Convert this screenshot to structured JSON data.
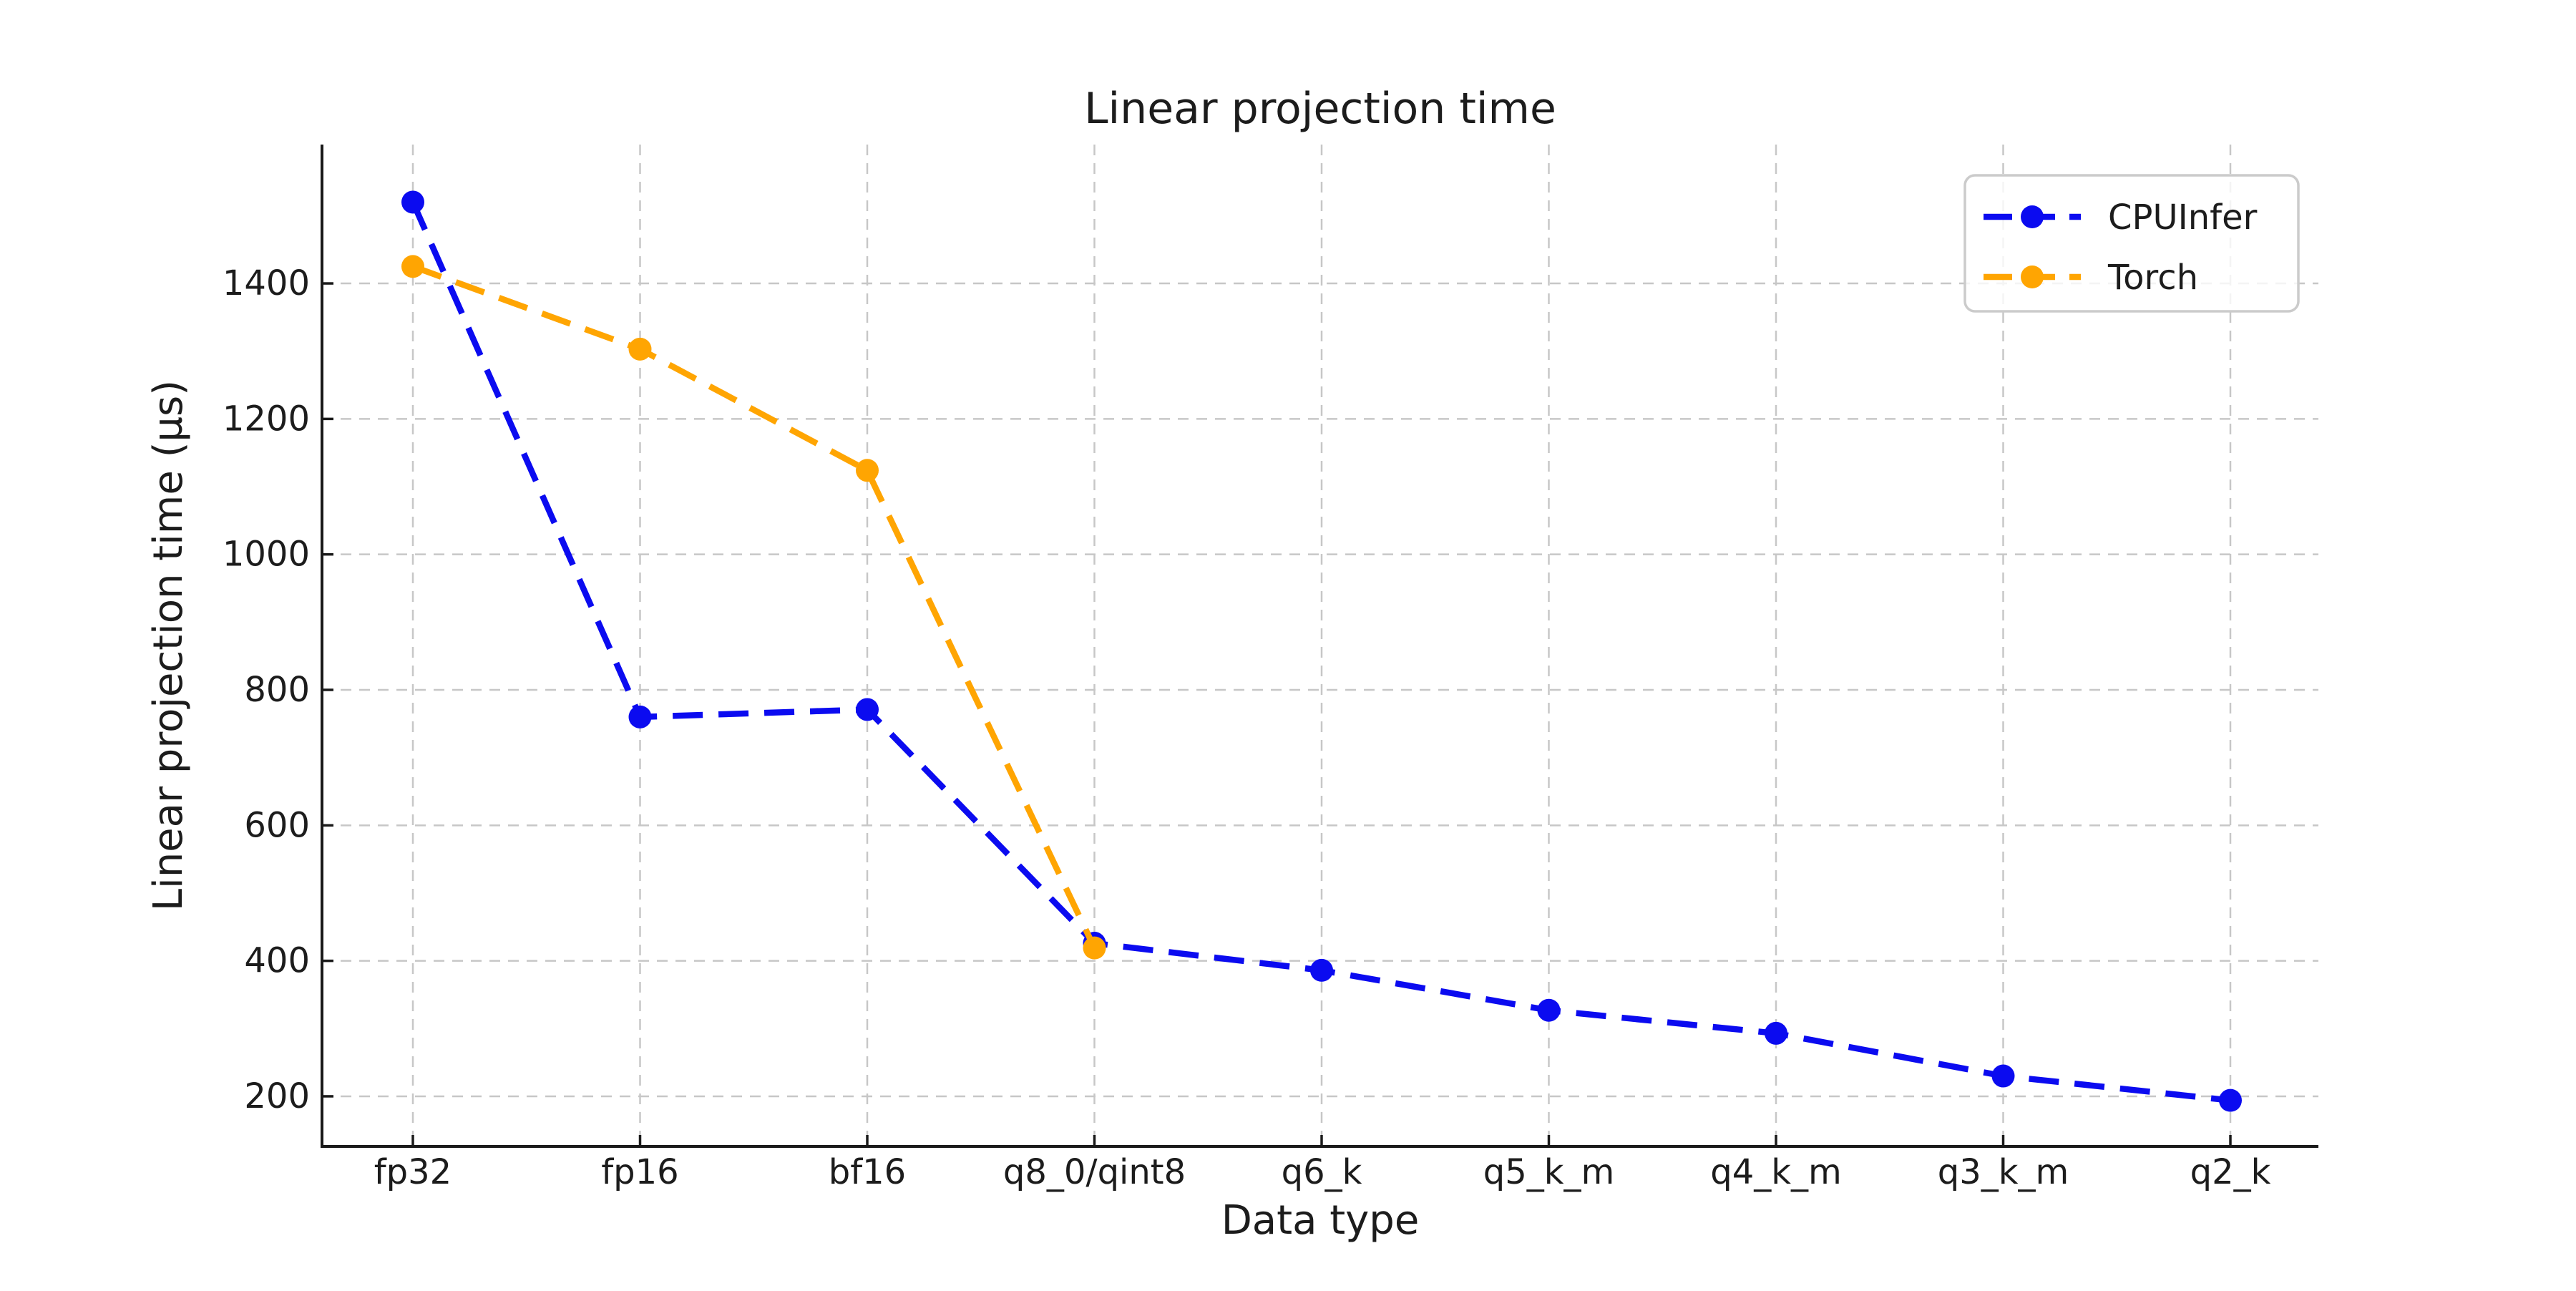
{
  "figure": {
    "title": "Linear projection time",
    "xlabel": "Data type",
    "ylabel": "Linear projection time (µs)"
  },
  "chart_data": {
    "type": "line",
    "title": "Linear projection time",
    "xlabel": "Data type",
    "ylabel": "Linear projection time (µs)",
    "categories": [
      "fp32",
      "fp16",
      "bf16",
      "q8_0/qint8",
      "q6_k",
      "q5_k_m",
      "q4_k_m",
      "q3_k_m",
      "q2_k"
    ],
    "series": [
      {
        "name": "CPUInfer",
        "color": "#0b0bf0",
        "values": [
          1520,
          760,
          771,
          426,
          386,
          327,
          293,
          230,
          194
        ]
      },
      {
        "name": "Torch",
        "color": "#ffa502",
        "values": [
          1425,
          1303,
          1124,
          419
        ]
      }
    ],
    "ylim": [
      126,
      1605
    ],
    "yticks": [
      200,
      400,
      600,
      800,
      1000,
      1200,
      1400
    ],
    "grid": true,
    "grid_color": "#c7c7c7",
    "line_style": "dashed",
    "marker": "circle",
    "legend_position": "upper right",
    "legend_border_color": "#cbcbcb",
    "spine_color": "#1a1a1a",
    "text_color": "#1c1c1c",
    "background_color": "#ffffff"
  }
}
